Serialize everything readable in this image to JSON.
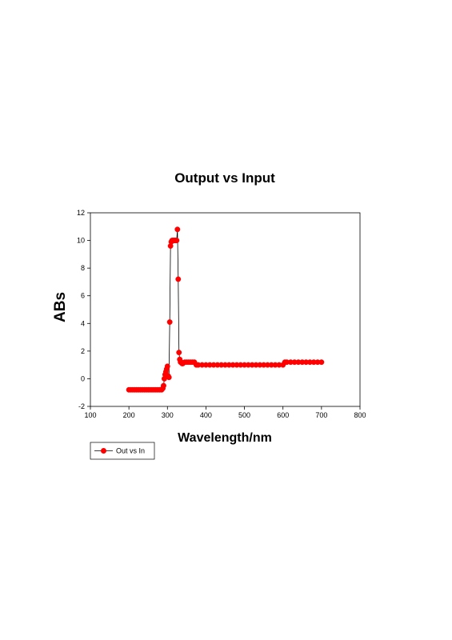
{
  "chart_data": {
    "type": "line",
    "title": "Output vs Input",
    "xlabel": "Wavelength/nm",
    "ylabel": "ABs",
    "xlim": [
      100,
      800
    ],
    "ylim": [
      -2,
      12
    ],
    "xticks": [
      "100",
      "200",
      "300",
      "400",
      "500",
      "600",
      "700",
      "800"
    ],
    "yticks": [
      "-2",
      "0",
      "2",
      "4",
      "6",
      "8",
      "10",
      "12"
    ],
    "grid": false,
    "legend_position": "bottom-left",
    "series": [
      {
        "name": "Out vs In",
        "color": "#ff0000",
        "marker": "circle",
        "x": [
          200,
          205,
          210,
          215,
          220,
          225,
          230,
          235,
          240,
          245,
          250,
          255,
          260,
          265,
          270,
          275,
          280,
          285,
          288,
          290,
          292,
          294,
          296,
          298,
          300,
          302,
          304,
          306,
          308,
          310,
          312,
          314,
          316,
          318,
          320,
          322,
          324,
          326,
          328,
          330,
          332,
          334,
          336,
          338,
          340,
          345,
          350,
          355,
          360,
          365,
          370,
          375,
          380,
          390,
          400,
          410,
          420,
          430,
          440,
          450,
          460,
          470,
          480,
          490,
          500,
          510,
          520,
          530,
          540,
          550,
          560,
          570,
          580,
          590,
          600,
          605,
          610,
          620,
          630,
          640,
          650,
          660,
          670,
          680,
          690,
          700
        ],
        "y": [
          -0.8,
          -0.8,
          -0.8,
          -0.8,
          -0.8,
          -0.8,
          -0.8,
          -0.8,
          -0.8,
          -0.8,
          -0.8,
          -0.8,
          -0.8,
          -0.8,
          -0.8,
          -0.8,
          -0.8,
          -0.8,
          -0.7,
          -0.5,
          0.0,
          0.3,
          0.5,
          0.7,
          0.9,
          0.2,
          0.1,
          4.1,
          9.6,
          9.9,
          10.0,
          10.0,
          10.0,
          10.0,
          10.0,
          10.0,
          10.0,
          10.8,
          7.2,
          1.9,
          1.4,
          1.2,
          1.2,
          1.1,
          1.1,
          1.2,
          1.2,
          1.2,
          1.2,
          1.2,
          1.2,
          1.0,
          1.0,
          1.0,
          1.0,
          1.0,
          1.0,
          1.0,
          1.0,
          1.0,
          1.0,
          1.0,
          1.0,
          1.0,
          1.0,
          1.0,
          1.0,
          1.0,
          1.0,
          1.0,
          1.0,
          1.0,
          1.0,
          1.0,
          1.0,
          1.2,
          1.2,
          1.2,
          1.2,
          1.2,
          1.2,
          1.2,
          1.2,
          1.2,
          1.2,
          1.2
        ]
      }
    ]
  }
}
